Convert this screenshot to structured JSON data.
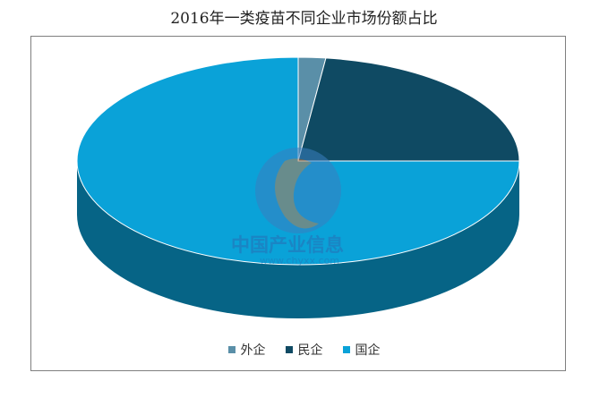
{
  "chart_data": {
    "type": "pie",
    "title": "2016年一类疫苗不同企业市场份额占比",
    "categories": [
      "外企",
      "民企",
      "国企"
    ],
    "values": [
      2,
      23,
      75
    ],
    "colors": [
      "#5a8fa8",
      "#0f4a63",
      "#0aa2d8"
    ],
    "legend_position": "bottom",
    "style": "3d"
  },
  "watermark": {
    "logo_text": "中国产业信息",
    "url_text": "www.chyxx.com"
  }
}
